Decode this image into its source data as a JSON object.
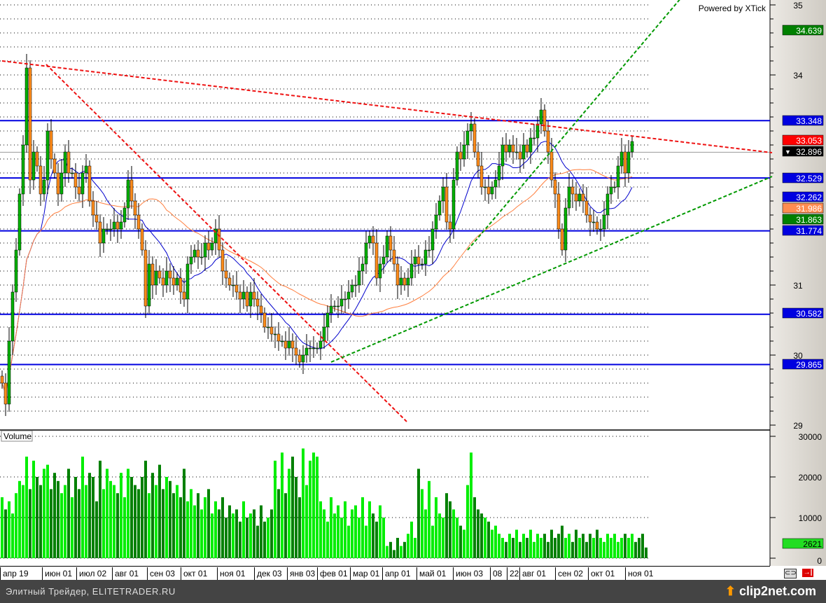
{
  "watermark": "Powered by XTick",
  "volume_label": "Volume",
  "footer": {
    "caption": "Элитный Трейдер, ELITETRADER.RU",
    "logo": "clip2net.com"
  },
  "toolbar_icons": [
    "link-icon",
    "exit-icon"
  ],
  "chart_data": [
    {
      "type": "candlestick",
      "title": "",
      "x_tick_labels": [
        "апр 19",
        "июн 01",
        "июл 02",
        "авг 01",
        "сен 03",
        "окт 01",
        "ноя 01",
        "дек 03",
        "янв 03",
        "фев 01",
        "мар 01",
        "апр 01",
        "май 01",
        "июн 03",
        "08",
        "22",
        "авг 01",
        "сен 02",
        "окт 01",
        "ноя 01"
      ],
      "y_ticks": [
        29,
        30,
        31,
        34,
        35
      ],
      "ylim": [
        28.95,
        35.07
      ],
      "grid": true,
      "colors": {
        "up": "#00b000",
        "down": "#ff8c1a",
        "ma_fast": "#0000cc",
        "ma_slow": "#ff7f3f",
        "level": "#0000e0",
        "resistance": "#ee1111",
        "support": "#009900"
      },
      "closes": [
        29.6,
        29.3,
        30.2,
        30.9,
        31.5,
        32.3,
        33.0,
        34.1,
        32.5,
        32.9,
        32.7,
        32.3,
        32.5,
        33.2,
        32.8,
        32.6,
        32.3,
        32.6,
        32.9,
        32.6,
        32.6,
        32.4,
        32.3,
        32.6,
        32.7,
        32.2,
        32.0,
        31.9,
        31.6,
        31.8,
        31.8,
        31.8,
        31.9,
        31.8,
        31.9,
        32.1,
        32.5,
        32.2,
        32.0,
        31.8,
        31.5,
        30.7,
        31.3,
        31.0,
        31.2,
        31.1,
        31.0,
        31.2,
        31.1,
        31.0,
        31.1,
        30.9,
        30.8,
        31.3,
        31.4,
        31.5,
        31.4,
        31.4,
        31.6,
        31.5,
        31.6,
        31.8,
        31.5,
        31.2,
        31.1,
        31.0,
        31.0,
        30.9,
        30.8,
        30.9,
        30.7,
        30.9,
        30.8,
        30.7,
        30.6,
        30.4,
        30.4,
        30.3,
        30.3,
        30.2,
        30.2,
        30.1,
        30.2,
        30.1,
        30.0,
        29.9,
        30.0,
        30.1,
        30.1,
        30.1,
        30.1,
        30.2,
        30.4,
        30.6,
        30.7,
        30.7,
        30.7,
        30.8,
        30.8,
        30.9,
        31.0,
        31.0,
        31.2,
        31.3,
        31.6,
        31.7,
        31.6,
        31.1,
        31.3,
        31.4,
        31.7,
        31.5,
        31.3,
        31.0,
        31.1,
        31.0,
        31.1,
        31.3,
        31.4,
        31.3,
        31.3,
        31.5,
        31.5,
        31.8,
        32.0,
        32.2,
        32.4,
        31.9,
        31.8,
        32.5,
        32.9,
        32.8,
        33.0,
        33.2,
        33.3,
        32.9,
        32.7,
        32.4,
        32.4,
        32.3,
        32.4,
        32.5,
        32.7,
        33.0,
        32.9,
        33.0,
        32.9,
        32.9,
        32.8,
        33.0,
        32.9,
        33.1,
        33.1,
        33.3,
        33.5,
        33.2,
        32.9,
        32.5,
        32.3,
        31.8,
        31.5,
        32.1,
        32.4,
        32.3,
        32.2,
        32.3,
        32.2,
        32.0,
        31.9,
        31.9,
        31.8,
        31.8,
        32.0,
        32.3,
        32.4,
        32.4,
        32.7,
        32.9,
        32.6,
        32.9,
        33.05
      ],
      "levels": [
        33.348,
        32.529,
        31.774,
        30.582,
        29.865
      ],
      "trendlines": [
        {
          "kind": "resistance",
          "from": [
            0,
            34.2
          ],
          "to": [
            220,
            32.89
          ]
        },
        {
          "kind": "resistance",
          "from": [
            12.6,
            34.15
          ],
          "to": [
            115.6,
            29.05
          ]
        },
        {
          "kind": "support",
          "from": [
            94,
            29.9
          ],
          "to": [
            220,
            32.55
          ]
        },
        {
          "kind": "support",
          "from": [
            133,
            31.5
          ],
          "to": [
            194,
            35.1
          ]
        }
      ],
      "price_labels": [
        {
          "value": "34.639",
          "color": "#008000"
        },
        {
          "value": "33.348",
          "color": "#0000e0"
        },
        {
          "value": "33.053",
          "color": "#ff0000"
        },
        {
          "value": "32.896",
          "color": "#000000",
          "marker": "▼"
        },
        {
          "value": "32.529",
          "color": "#0000e0"
        },
        {
          "value": "32.262",
          "color": "#0000e0"
        },
        {
          "value": "31.986",
          "color": "#ff8c50"
        },
        {
          "value": "31.863",
          "color": "#008000"
        },
        {
          "value": "31.774",
          "color": "#0000e0"
        },
        {
          "value": "30.582",
          "color": "#0000e0"
        },
        {
          "value": "29.865",
          "color": "#0000e0"
        }
      ]
    },
    {
      "type": "bar",
      "title": "Volume",
      "y_ticks": [
        0,
        10000,
        20000,
        30000
      ],
      "ylim": [
        0,
        31000
      ],
      "last_value": "2621",
      "colors": {
        "up": "#00ee00",
        "down": "#008000"
      },
      "values": [
        15000,
        12000,
        14000,
        11000,
        16000,
        19000,
        18000,
        25000,
        17000,
        24000,
        20000,
        18000,
        22000,
        23000,
        17000,
        21000,
        19000,
        16000,
        18000,
        22000,
        15000,
        20000,
        17000,
        25000,
        18000,
        21000,
        20000,
        14000,
        24000,
        17000,
        22000,
        19000,
        18000,
        16000,
        21000,
        15000,
        22000,
        20000,
        18000,
        17000,
        20000,
        24000,
        16000,
        21000,
        18000,
        23000,
        17000,
        20000,
        19000,
        16000,
        18000,
        15000,
        22000,
        14000,
        17000,
        13000,
        16000,
        12000,
        15000,
        17000,
        11000,
        14000,
        12000,
        15000,
        10000,
        13000,
        11000,
        12000,
        9000,
        14000,
        10000,
        11000,
        12000,
        8000,
        13000,
        9000,
        10000,
        12000,
        24000,
        17000,
        26000,
        16000,
        22000,
        25000,
        20000,
        15000,
        27000,
        18000,
        24000,
        26000,
        25000,
        14000,
        12000,
        9000,
        15000,
        11000,
        13000,
        10000,
        14000,
        8000,
        12000,
        13000,
        10000,
        15000,
        8000,
        14000,
        11000,
        9000,
        13000,
        10000,
        3000,
        4000,
        2000,
        5000,
        3000,
        4000,
        6000,
        9000,
        5000,
        22000,
        17000,
        12000,
        19000,
        8000,
        15000,
        11000,
        10000,
        16000,
        14000,
        12000,
        10000,
        8000,
        7000,
        18000,
        26000,
        15000,
        12000,
        11000,
        10000,
        9000,
        7000,
        8000,
        6000,
        5000,
        4000,
        6000,
        5000,
        7000,
        4000,
        6000,
        5000,
        7000,
        4000,
        6000,
        5000,
        6000,
        4000,
        7000,
        5000,
        6000,
        8000,
        5000,
        6000,
        4000,
        7000,
        5000,
        6000,
        4000,
        6000,
        5000,
        7000,
        5000,
        4000,
        6000,
        5000,
        6000,
        4000,
        5000,
        6000,
        5000,
        6000,
        4000,
        5000,
        6000,
        2621
      ]
    }
  ]
}
